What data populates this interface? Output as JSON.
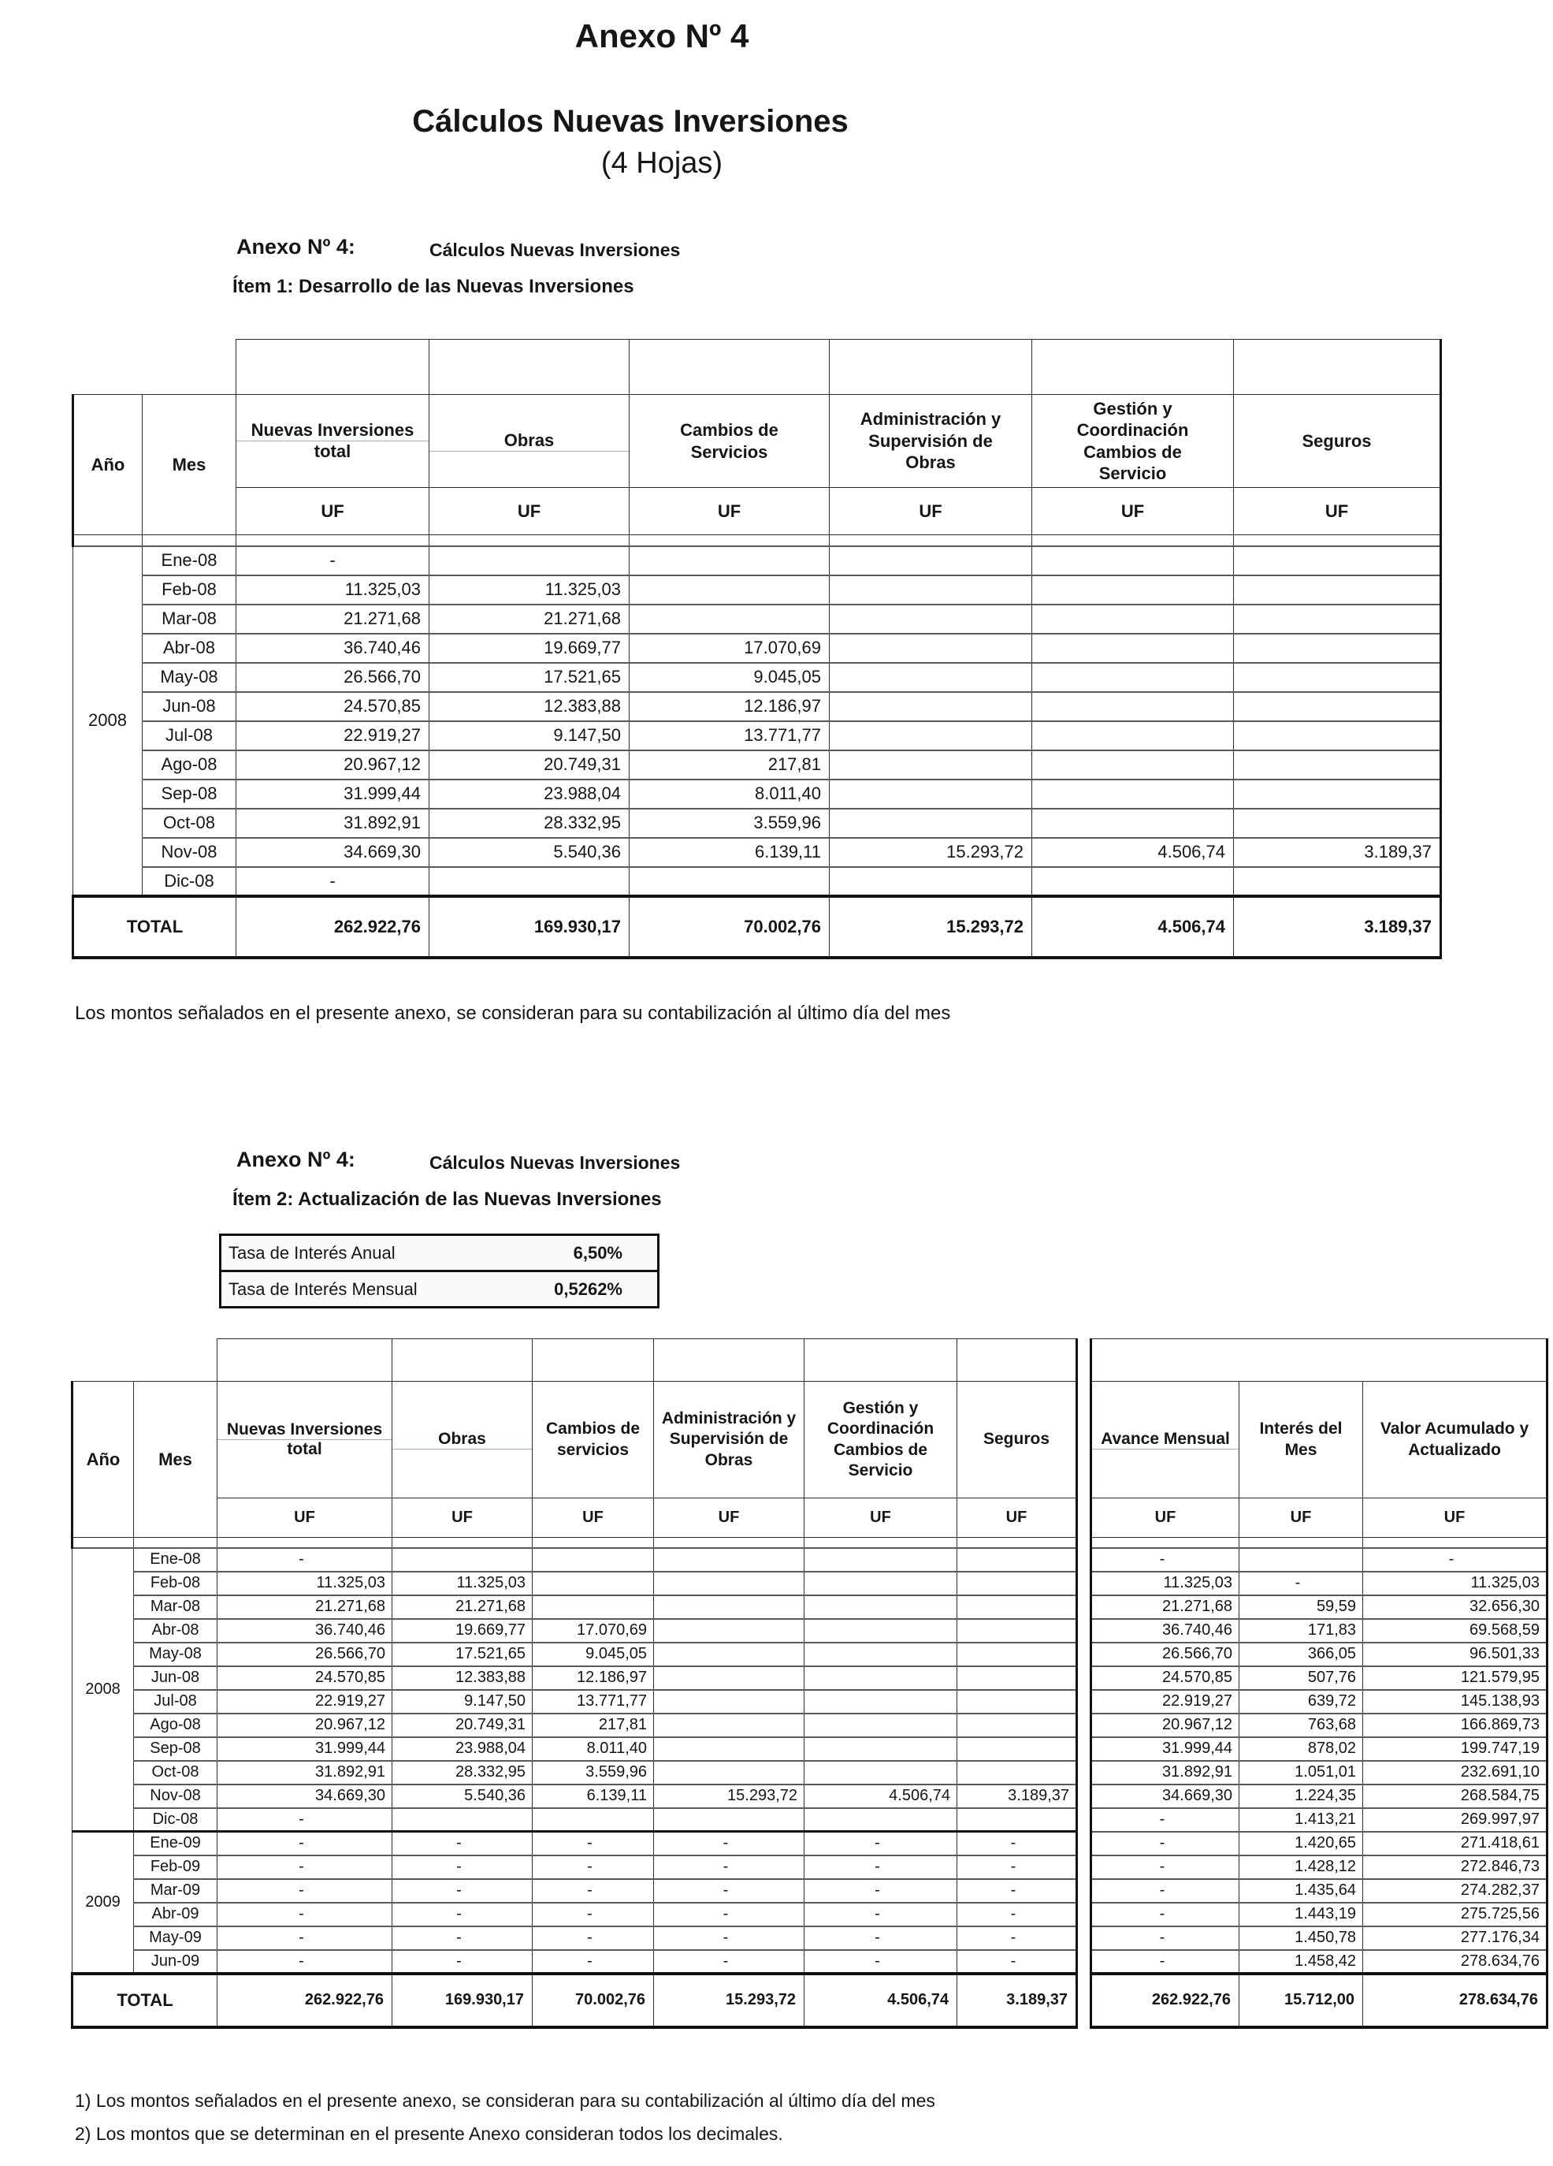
{
  "page": {
    "title": "Anexo Nº 4",
    "subtitle": "Cálculos Nuevas Inversiones",
    "subtitle2": "(4 Hojas)"
  },
  "section1": {
    "anexo_label": "Anexo Nº 4:",
    "anexo_title": "Cálculos Nuevas Inversiones",
    "item_label": "Ítem 1: Desarrollo de las Nuevas Inversiones"
  },
  "note1": "Los montos señalados en el presente anexo, se consideran para su contabilización al último día del mes",
  "section2": {
    "anexo_label": "Anexo Nº 4:",
    "anexo_title": "Cálculos Nuevas Inversiones",
    "item_label": "Ítem 2: Actualización de las Nuevas Inversiones"
  },
  "rates": {
    "rows": [
      {
        "label": "Tasa de Interés Anual",
        "value": "6,50%"
      },
      {
        "label": "Tasa de Interés Mensual",
        "value": "0,5262%"
      }
    ]
  },
  "table1": {
    "col_year": "Año",
    "col_month": "Mes",
    "unit": "UF",
    "columns": [
      {
        "title": "Nuevas Inversiones",
        "sub": "total"
      },
      {
        "title": "Obras",
        "sub": ""
      },
      {
        "title": "Cambios de Servicios"
      },
      {
        "title": "Administración y Supervisión de Obras"
      },
      {
        "title": "Gestión y Coordinación Cambios de Servicio"
      },
      {
        "title": "Seguros"
      }
    ],
    "year_groups": [
      {
        "label": "2008",
        "span": 12
      }
    ],
    "rows": [
      {
        "mes": "Ene-08",
        "v": [
          "-",
          "",
          "",
          "",
          "",
          ""
        ]
      },
      {
        "mes": "Feb-08",
        "v": [
          "11.325,03",
          "11.325,03",
          "",
          "",
          "",
          ""
        ]
      },
      {
        "mes": "Mar-08",
        "v": [
          "21.271,68",
          "21.271,68",
          "",
          "",
          "",
          ""
        ]
      },
      {
        "mes": "Abr-08",
        "v": [
          "36.740,46",
          "19.669,77",
          "17.070,69",
          "",
          "",
          ""
        ]
      },
      {
        "mes": "May-08",
        "v": [
          "26.566,70",
          "17.521,65",
          "9.045,05",
          "",
          "",
          ""
        ]
      },
      {
        "mes": "Jun-08",
        "v": [
          "24.570,85",
          "12.383,88",
          "12.186,97",
          "",
          "",
          ""
        ]
      },
      {
        "mes": "Jul-08",
        "v": [
          "22.919,27",
          "9.147,50",
          "13.771,77",
          "",
          "",
          ""
        ]
      },
      {
        "mes": "Ago-08",
        "v": [
          "20.967,12",
          "20.749,31",
          "217,81",
          "",
          "",
          ""
        ]
      },
      {
        "mes": "Sep-08",
        "v": [
          "31.999,44",
          "23.988,04",
          "8.011,40",
          "",
          "",
          ""
        ]
      },
      {
        "mes": "Oct-08",
        "v": [
          "31.892,91",
          "28.332,95",
          "3.559,96",
          "",
          "",
          ""
        ]
      },
      {
        "mes": "Nov-08",
        "v": [
          "34.669,30",
          "5.540,36",
          "6.139,11",
          "15.293,72",
          "4.506,74",
          "3.189,37"
        ]
      },
      {
        "mes": "Dic-08",
        "v": [
          "-",
          "",
          "",
          "",
          "",
          ""
        ]
      }
    ],
    "total_label": "TOTAL",
    "total": [
      "262.922,76",
      "169.930,17",
      "70.002,76",
      "15.293,72",
      "4.506,74",
      "3.189,37"
    ]
  },
  "table2": {
    "col_year": "Año",
    "col_month": "Mes",
    "unit": "UF",
    "columns": [
      {
        "title": "Nuevas Inversiones",
        "sub": "total"
      },
      {
        "title": "Obras",
        "sub": ""
      },
      {
        "title": "Cambios de servicios"
      },
      {
        "title": "Administración y Supervisión de Obras"
      },
      {
        "title": "Gestión y Coordinación Cambios de Servicio"
      },
      {
        "title": "Seguros"
      },
      {
        "title": "Avance Mensual",
        "sub": ""
      },
      {
        "title": "Interés del Mes"
      },
      {
        "title": "Valor Acumulado y Actualizado"
      }
    ],
    "year_groups": [
      {
        "label": "2008",
        "span": 12
      },
      {
        "label": "2009",
        "span": 6
      }
    ],
    "rows": [
      {
        "mes": "Ene-08",
        "v": [
          "-",
          "",
          "",
          "",
          "",
          "",
          "-",
          "",
          "-"
        ]
      },
      {
        "mes": "Feb-08",
        "v": [
          "11.325,03",
          "11.325,03",
          "",
          "",
          "",
          "",
          "11.325,03",
          "-",
          "11.325,03"
        ]
      },
      {
        "mes": "Mar-08",
        "v": [
          "21.271,68",
          "21.271,68",
          "",
          "",
          "",
          "",
          "21.271,68",
          "59,59",
          "32.656,30"
        ]
      },
      {
        "mes": "Abr-08",
        "v": [
          "36.740,46",
          "19.669,77",
          "17.070,69",
          "",
          "",
          "",
          "36.740,46",
          "171,83",
          "69.568,59"
        ]
      },
      {
        "mes": "May-08",
        "v": [
          "26.566,70",
          "17.521,65",
          "9.045,05",
          "",
          "",
          "",
          "26.566,70",
          "366,05",
          "96.501,33"
        ]
      },
      {
        "mes": "Jun-08",
        "v": [
          "24.570,85",
          "12.383,88",
          "12.186,97",
          "",
          "",
          "",
          "24.570,85",
          "507,76",
          "121.579,95"
        ]
      },
      {
        "mes": "Jul-08",
        "v": [
          "22.919,27",
          "9.147,50",
          "13.771,77",
          "",
          "",
          "",
          "22.919,27",
          "639,72",
          "145.138,93"
        ]
      },
      {
        "mes": "Ago-08",
        "v": [
          "20.967,12",
          "20.749,31",
          "217,81",
          "",
          "",
          "",
          "20.967,12",
          "763,68",
          "166.869,73"
        ]
      },
      {
        "mes": "Sep-08",
        "v": [
          "31.999,44",
          "23.988,04",
          "8.011,40",
          "",
          "",
          "",
          "31.999,44",
          "878,02",
          "199.747,19"
        ]
      },
      {
        "mes": "Oct-08",
        "v": [
          "31.892,91",
          "28.332,95",
          "3.559,96",
          "",
          "",
          "",
          "31.892,91",
          "1.051,01",
          "232.691,10"
        ]
      },
      {
        "mes": "Nov-08",
        "v": [
          "34.669,30",
          "5.540,36",
          "6.139,11",
          "15.293,72",
          "4.506,74",
          "3.189,37",
          "34.669,30",
          "1.224,35",
          "268.584,75"
        ]
      },
      {
        "mes": "Dic-08",
        "v": [
          "-",
          "",
          "",
          "",
          "",
          "",
          "-",
          "1.413,21",
          "269.997,97"
        ]
      },
      {
        "mes": "Ene-09",
        "v": [
          "-",
          "-",
          "-",
          "-",
          "-",
          "-",
          "-",
          "1.420,65",
          "271.418,61"
        ]
      },
      {
        "mes": "Feb-09",
        "v": [
          "-",
          "-",
          "-",
          "-",
          "-",
          "-",
          "-",
          "1.428,12",
          "272.846,73"
        ]
      },
      {
        "mes": "Mar-09",
        "v": [
          "-",
          "-",
          "-",
          "-",
          "-",
          "-",
          "-",
          "1.435,64",
          "274.282,37"
        ]
      },
      {
        "mes": "Abr-09",
        "v": [
          "-",
          "-",
          "-",
          "-",
          "-",
          "-",
          "-",
          "1.443,19",
          "275.725,56"
        ]
      },
      {
        "mes": "May-09",
        "v": [
          "-",
          "-",
          "-",
          "-",
          "-",
          "-",
          "-",
          "1.450,78",
          "277.176,34"
        ]
      },
      {
        "mes": "Jun-09",
        "v": [
          "-",
          "-",
          "-",
          "-",
          "-",
          "-",
          "-",
          "1.458,42",
          "278.634,76"
        ]
      }
    ],
    "total_label": "TOTAL",
    "total": [
      "262.922,76",
      "169.930,17",
      "70.002,76",
      "15.293,72",
      "4.506,74",
      "3.189,37",
      "262.922,76",
      "15.712,00",
      "278.634,76"
    ]
  },
  "footnotes": [
    "1) Los montos señalados en el presente anexo, se consideran para su contabilización al último día del mes",
    "2) Los montos que se determinan en el presente Anexo consideran todos los decimales."
  ]
}
